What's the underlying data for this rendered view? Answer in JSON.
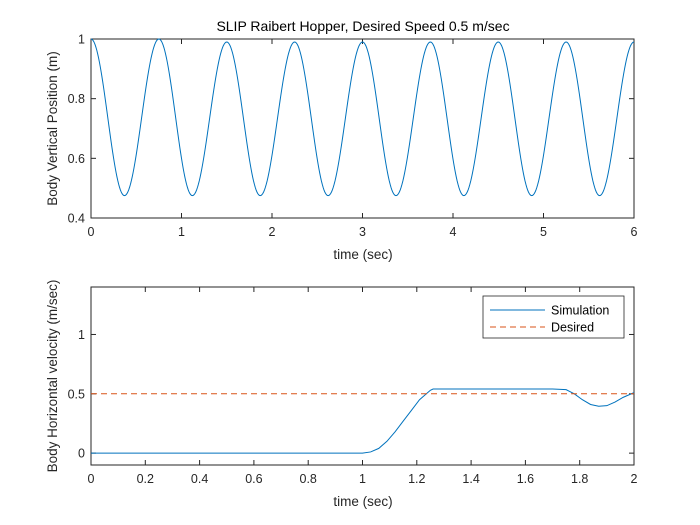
{
  "chart_data": [
    {
      "type": "line",
      "title": "SLIP Raibert Hopper, Desired Speed 0.5 m/sec",
      "xlabel": "time (sec)",
      "ylabel": "Body Vertical Position (m)",
      "xlim": [
        0,
        6
      ],
      "ylim": [
        0.4,
        1.0
      ],
      "xticks": [
        0,
        1,
        2,
        3,
        4,
        5,
        6
      ],
      "yticks": [
        0.4,
        0.6,
        0.8,
        1.0
      ],
      "xtick_labels": [
        "0",
        "1",
        "2",
        "3",
        "4",
        "5",
        "6"
      ],
      "ytick_labels": [
        "0.4",
        "0.6",
        "0.8",
        "1"
      ],
      "grid": false,
      "series": [
        {
          "name": "Body Vertical Position",
          "color": "#0072BD",
          "style": "solid",
          "model": "periodic_bounce",
          "peak_times": [
            0.0,
            0.75,
            1.5,
            2.25,
            3.0,
            3.75,
            4.5,
            5.25,
            6.0
          ],
          "peak_values": [
            1.0,
            1.0,
            0.99,
            0.99,
            0.99,
            0.99,
            0.99,
            0.99,
            0.99
          ],
          "valley_times": [
            0.37,
            1.12,
            1.87,
            2.62,
            3.37,
            4.12,
            4.87,
            5.62
          ],
          "valley_values": [
            0.475,
            0.475,
            0.475,
            0.475,
            0.475,
            0.475,
            0.475,
            0.475
          ]
        }
      ]
    },
    {
      "type": "line",
      "title": "",
      "xlabel": "time (sec)",
      "ylabel": "Body Horizontal velocity (m/sec)",
      "xlim": [
        0,
        2
      ],
      "ylim": [
        -0.1,
        1.4
      ],
      "xticks": [
        0,
        0.2,
        0.4,
        0.6,
        0.8,
        1.0,
        1.2,
        1.4,
        1.6,
        1.8,
        2.0
      ],
      "yticks": [
        0,
        0.5,
        1
      ],
      "xtick_labels": [
        "0",
        "0.2",
        "0.4",
        "0.6",
        "0.8",
        "1",
        "1.2",
        "1.4",
        "1.6",
        "1.8",
        "2"
      ],
      "ytick_labels": [
        "0",
        "0.5",
        "1"
      ],
      "grid": false,
      "legend": "top-right",
      "series": [
        {
          "name": "Simulation",
          "color": "#0072BD",
          "style": "solid",
          "x": [
            0,
            0.2,
            0.4,
            0.6,
            0.8,
            1.0,
            1.03,
            1.06,
            1.09,
            1.12,
            1.15,
            1.18,
            1.21,
            1.24,
            1.25,
            1.26,
            1.35,
            1.5,
            1.6,
            1.7,
            1.75,
            1.78,
            1.81,
            1.84,
            1.87,
            1.9,
            1.93,
            1.96,
            2.0
          ],
          "y": [
            0,
            0,
            0,
            0,
            0,
            0,
            0.01,
            0.04,
            0.1,
            0.18,
            0.27,
            0.36,
            0.45,
            0.51,
            0.53,
            0.54,
            0.54,
            0.54,
            0.54,
            0.54,
            0.535,
            0.5,
            0.45,
            0.41,
            0.395,
            0.4,
            0.43,
            0.47,
            0.51
          ]
        },
        {
          "name": "Desired",
          "color": "#D95319",
          "style": "dashed",
          "x": [
            0,
            2
          ],
          "y": [
            0.5,
            0.5
          ]
        }
      ]
    }
  ]
}
